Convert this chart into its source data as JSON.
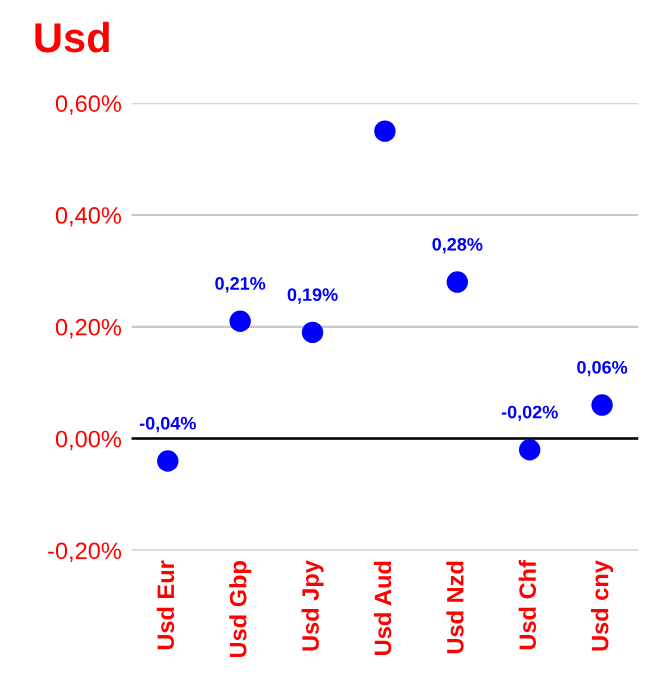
{
  "chart_data": {
    "type": "scatter",
    "title": "Usd",
    "categories": [
      "Usd Eur",
      "Usd Gbp",
      "Usd Jpy",
      "Usd Aud",
      "Usd Nzd",
      "Usd Chf",
      "Usd cny"
    ],
    "series": [
      {
        "color": "#0000ff",
        "values": [
          -0.04,
          0.21,
          0.19,
          0.55,
          0.28,
          -0.02,
          0.06
        ],
        "value_labels": [
          "-0,04%",
          "0,21%",
          "0,19%",
          null,
          "0,28%",
          "-0,02%",
          "0,06%"
        ]
      }
    ],
    "ylim": [
      -0.2,
      0.6
    ],
    "yticks": [
      {
        "value": -0.2,
        "label": "-0,20%"
      },
      {
        "value": 0,
        "label": "0,00%"
      },
      {
        "value": 0.2,
        "label": "0,20%"
      },
      {
        "value": 0.4,
        "label": "0,40%"
      },
      {
        "value": 0.6,
        "label": "0,60%"
      }
    ],
    "grid": "y",
    "marker": "circle",
    "ref_lines": [
      {
        "axis": "y",
        "value": 0,
        "label": null,
        "color": "#000000"
      }
    ]
  }
}
